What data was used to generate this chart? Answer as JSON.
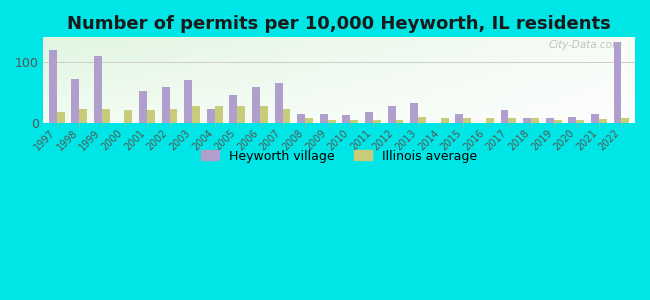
{
  "title": "Number of permits per 10,000 Heyworth, IL residents",
  "years": [
    1997,
    1998,
    1999,
    2000,
    2001,
    2002,
    2003,
    2004,
    2005,
    2006,
    2007,
    2008,
    2009,
    2010,
    2011,
    2012,
    2013,
    2014,
    2015,
    2016,
    2017,
    2018,
    2019,
    2020,
    2021,
    2022
  ],
  "heyworth": [
    120,
    72,
    110,
    0,
    52,
    58,
    70,
    23,
    45,
    58,
    65,
    14,
    14,
    13,
    18,
    27,
    32,
    0,
    15,
    0,
    20,
    7,
    8,
    10,
    14,
    132
  ],
  "illinois": [
    18,
    22,
    22,
    20,
    21,
    22,
    28,
    28,
    28,
    28,
    22,
    7,
    4,
    4,
    4,
    4,
    10,
    8,
    7,
    7,
    7,
    7,
    5,
    4,
    6,
    8
  ],
  "heyworth_color": "#b09fcc",
  "illinois_color": "#c8cc7a",
  "bg_outer": "#00e5e5",
  "ylim": [
    0,
    140
  ],
  "ytick_val": 100,
  "bar_width": 0.35,
  "legend_heyworth": "Heyworth village",
  "legend_illinois": "Illinois average",
  "title_fontsize": 13,
  "tick_fontsize": 7,
  "watermark": "City-Data.com"
}
